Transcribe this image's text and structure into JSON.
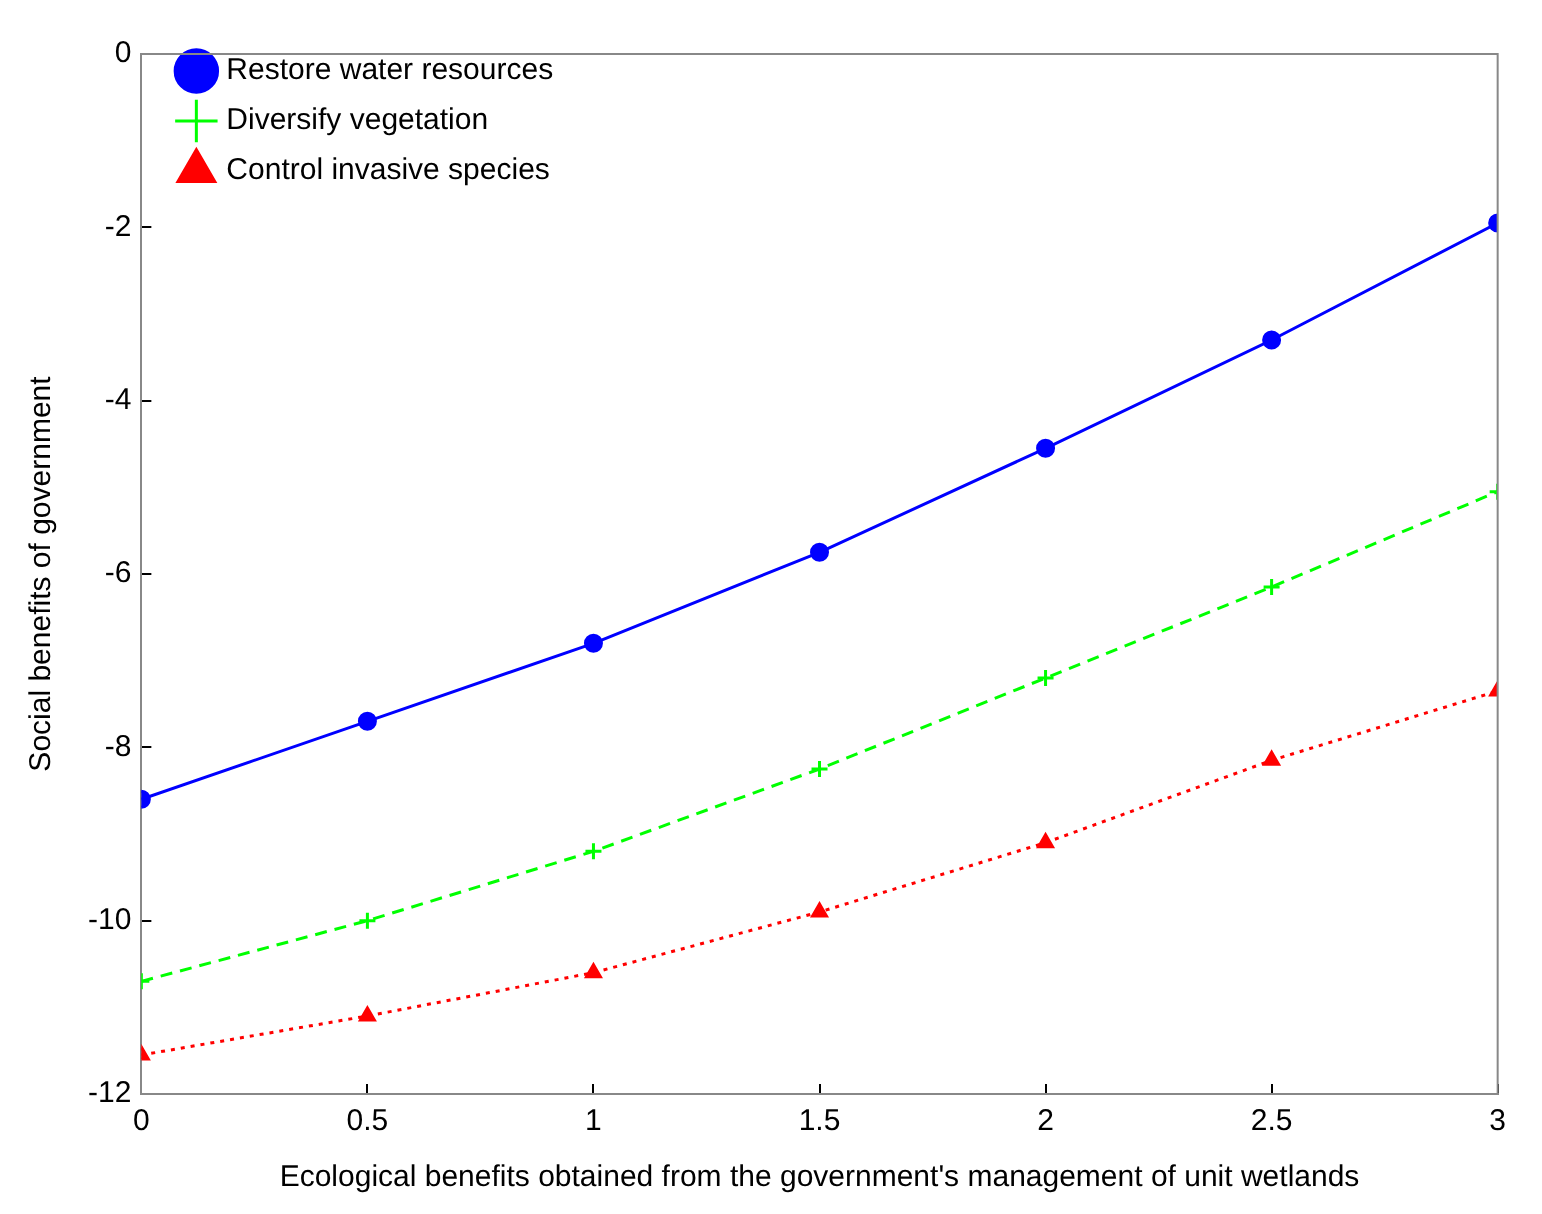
{
  "chart_data": {
    "type": "line",
    "xlabel": "Ecological benefits obtained from the government's management of unit wetlands",
    "ylabel": "Social benefits of government",
    "x": [
      0,
      0.5,
      1,
      1.5,
      2,
      2.5,
      3
    ],
    "series": [
      {
        "name": "Restore water resources",
        "color": "#0000ff",
        "marker": "circle",
        "line_style": "solid",
        "values": [
          -8.6,
          -7.7,
          -6.8,
          -5.75,
          -4.55,
          -3.3,
          -1.95
        ]
      },
      {
        "name": "Diversify vegetation",
        "color": "#00ff00",
        "marker": "cross",
        "line_style": "dashed",
        "values": [
          -10.7,
          -10.0,
          -9.2,
          -8.25,
          -7.2,
          -6.15,
          -5.05
        ]
      },
      {
        "name": "Control invasive species",
        "color": "#ff0000",
        "marker": "triangle",
        "line_style": "dotted",
        "values": [
          -11.55,
          -11.1,
          -10.6,
          -9.9,
          -9.1,
          -8.15,
          -7.35
        ]
      }
    ],
    "xlim": [
      0,
      3
    ],
    "xticks": [
      0,
      0.5,
      1,
      1.5,
      2,
      2.5,
      3
    ],
    "ylim": [
      -12,
      0
    ],
    "yticks": [
      -12,
      -10,
      -8,
      -6,
      -4,
      -2,
      0
    ],
    "grid": false,
    "legend": "top left"
  }
}
